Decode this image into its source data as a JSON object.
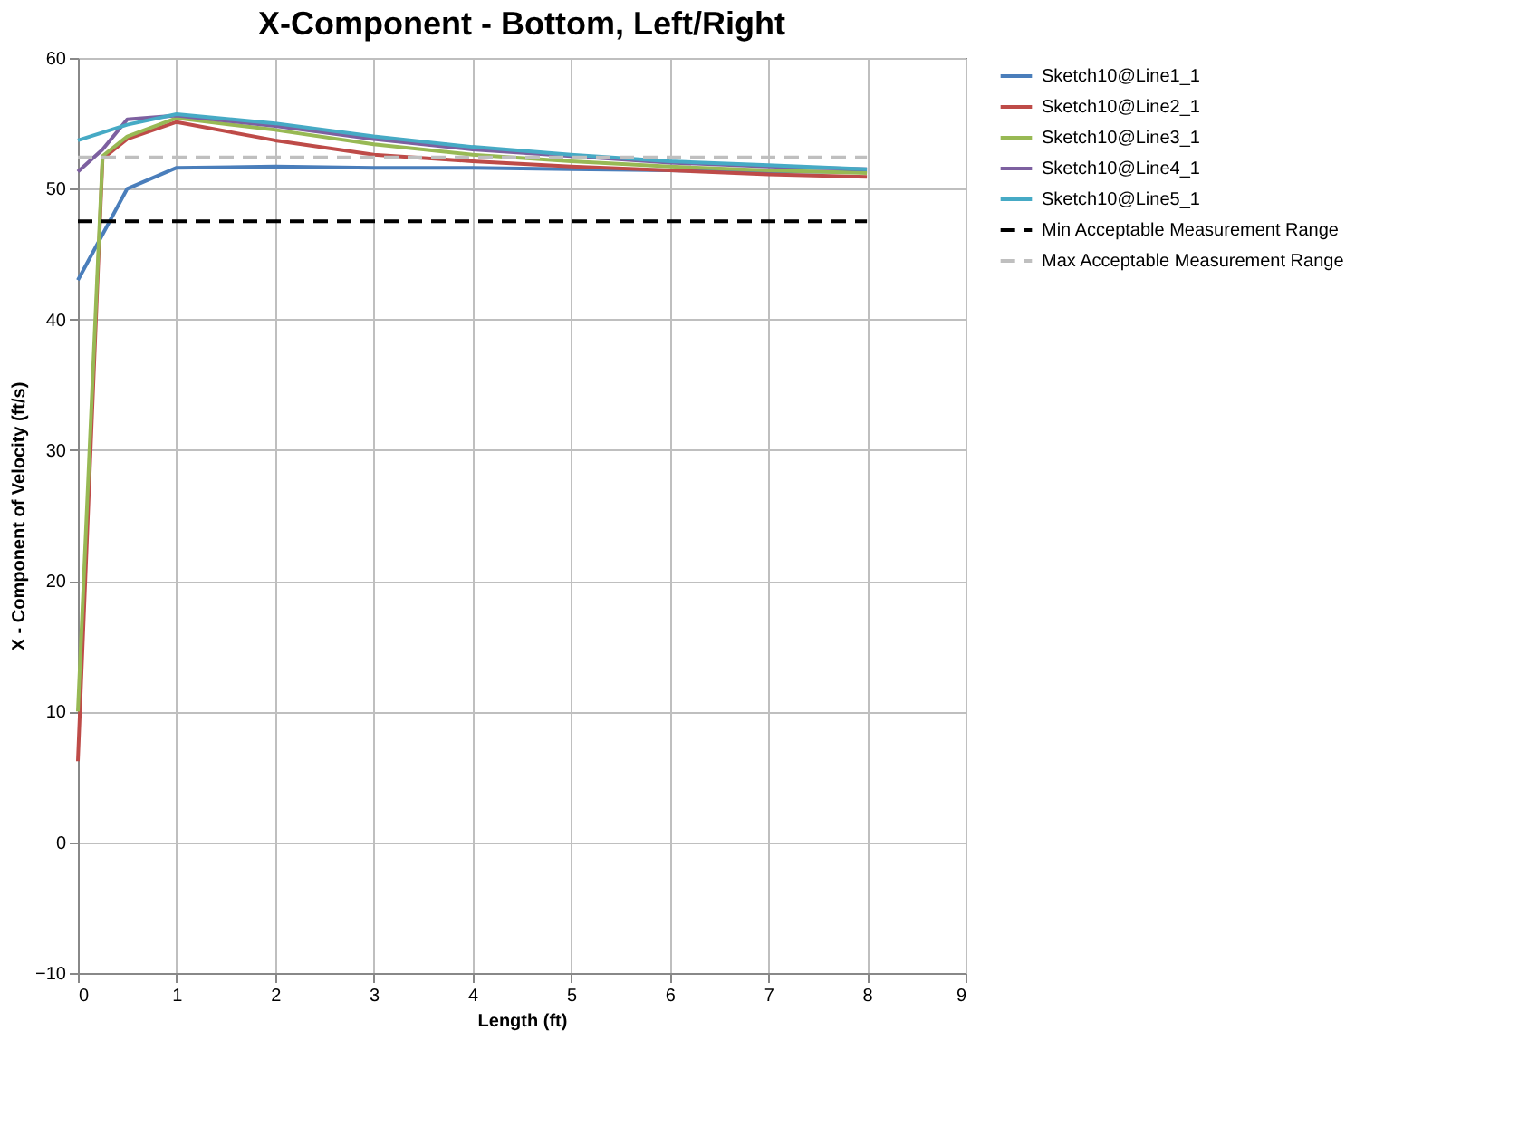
{
  "chart_data": {
    "type": "line",
    "title": "X-Component - Bottom, Left/Right",
    "xlabel": "Length (ft)",
    "ylabel": "X - Component of Velocity (ft/s)",
    "xlim": [
      0,
      9
    ],
    "xticks": [
      0,
      1,
      2,
      3,
      4,
      5,
      6,
      7,
      8,
      9
    ],
    "ylim": [
      -10,
      60
    ],
    "yticks": [
      -10,
      0,
      10,
      20,
      30,
      40,
      50,
      60
    ],
    "grid": true,
    "legend": "right",
    "marker": "none",
    "series": [
      {
        "name": "Sketch10@Line1_1",
        "color": "#4a7ebb",
        "x": [
          0,
          0.5,
          1,
          2,
          3,
          4,
          5,
          6,
          7,
          8
        ],
        "values": [
          43.0,
          50.0,
          51.6,
          51.7,
          51.6,
          51.6,
          51.5,
          51.4,
          51.3,
          51.3
        ]
      },
      {
        "name": "Sketch10@Line2_1",
        "color": "#be4b48",
        "x": [
          0,
          0.25,
          0.5,
          1,
          2,
          3,
          4,
          5,
          6,
          7,
          8
        ],
        "values": [
          6.2,
          52.3,
          53.8,
          55.1,
          53.7,
          52.6,
          52.1,
          51.7,
          51.4,
          51.1,
          50.9
        ]
      },
      {
        "name": "Sketch10@Line3_1",
        "color": "#98b954",
        "x": [
          0,
          0.25,
          0.5,
          1,
          2,
          3,
          4,
          5,
          6,
          7,
          8
        ],
        "values": [
          10.0,
          52.5,
          54.0,
          55.4,
          54.5,
          53.4,
          52.6,
          52.1,
          51.7,
          51.4,
          51.2
        ]
      },
      {
        "name": "Sketch10@Line4_1",
        "color": "#7d60a0",
        "x": [
          0,
          0.25,
          0.5,
          1,
          2,
          3,
          4,
          5,
          6,
          7,
          8
        ],
        "values": [
          51.3,
          53.0,
          55.3,
          55.6,
          54.8,
          53.8,
          53.0,
          52.5,
          52.0,
          51.7,
          51.5
        ]
      },
      {
        "name": "Sketch10@Line5_1",
        "color": "#46aac5",
        "x": [
          0,
          0.5,
          1,
          2,
          3,
          4,
          5,
          6,
          7,
          8
        ],
        "values": [
          53.7,
          54.9,
          55.7,
          55.0,
          54.0,
          53.2,
          52.6,
          52.1,
          51.8,
          51.5
        ]
      },
      {
        "name": "Min Acceptable Measurement Range",
        "color": "#000000",
        "line_style": "dashed",
        "x": [
          0,
          8
        ],
        "values": [
          47.5,
          47.5
        ]
      },
      {
        "name": "Max Acceptable Measurement Range",
        "color": "#bfbfbf",
        "line_style": "dashed",
        "x": [
          0,
          8
        ],
        "values": [
          52.4,
          52.4
        ]
      }
    ]
  }
}
